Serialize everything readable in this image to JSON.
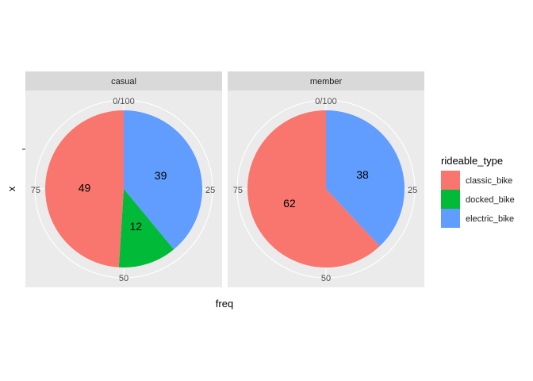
{
  "chart_data": {
    "type": "pie",
    "facets": [
      {
        "label": "casual",
        "slices": [
          {
            "category": "classic_bike",
            "value": 49
          },
          {
            "category": "docked_bike",
            "value": 12
          },
          {
            "category": "electric_bike",
            "value": 39
          }
        ]
      },
      {
        "label": "member",
        "slices": [
          {
            "category": "classic_bike",
            "value": 62
          },
          {
            "category": "electric_bike",
            "value": 38
          }
        ]
      }
    ],
    "theta_ticks": [
      "0/100",
      "25",
      "50",
      "75"
    ],
    "xlabel": "freq",
    "ylabel": "x",
    "legend": {
      "title": "rideable_type",
      "position": "right",
      "entries": [
        {
          "name": "classic_bike",
          "color": "#F8766D"
        },
        {
          "name": "docked_bike",
          "color": "#00BA38"
        },
        {
          "name": "electric_bike",
          "color": "#619CFF"
        }
      ]
    },
    "grid": true,
    "panel_background": "#EBEBEB",
    "strip_background": "#D9D9D9"
  }
}
